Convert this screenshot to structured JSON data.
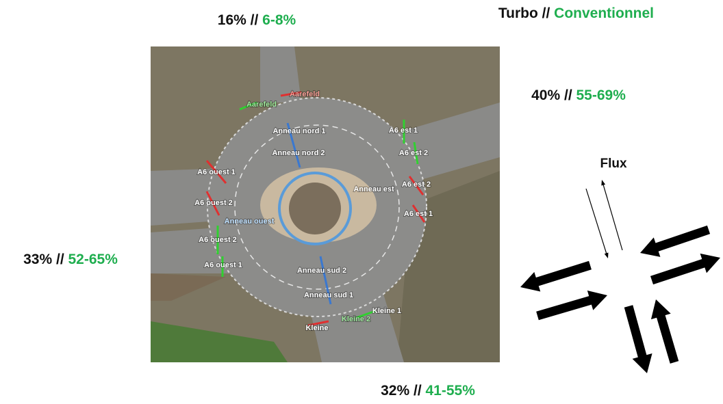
{
  "legend": {
    "turbo": "Turbo",
    "separator": "//",
    "conventionnel": "Conventionnel"
  },
  "approaches": [
    {
      "turbo": "16%",
      "separator": "//",
      "conventionnel": "6-8%"
    },
    {
      "turbo": "40%",
      "separator": "//",
      "conventionnel": "55-69%"
    },
    {
      "turbo": "33%",
      "separator": "//",
      "conventionnel": "52-65%"
    },
    {
      "turbo": "32%",
      "separator": "//",
      "conventionnel": "41-55%"
    }
  ],
  "flux_label": "Flux",
  "photo_labels": [
    {
      "text": "Aarefeld",
      "color": "#f49a93"
    },
    {
      "text": "Aarefeld",
      "color": "#9be89b"
    },
    {
      "text": "Anneau nord 1",
      "color": "#ffffff"
    },
    {
      "text": "Anneau nord 2",
      "color": "#ffffff"
    },
    {
      "text": "A6 est 1",
      "color": "#ffffff"
    },
    {
      "text": "A6 est 2",
      "color": "#ffffff"
    },
    {
      "text": "A6 ouest 1",
      "color": "#ffffff"
    },
    {
      "text": "Anneau est",
      "color": "#ffffff"
    },
    {
      "text": "A6 est 2",
      "color": "#ffffff"
    },
    {
      "text": "A6 ouest 2",
      "color": "#ffffff"
    },
    {
      "text": "A6 est 1",
      "color": "#ffffff"
    },
    {
      "text": "Anneau ouest",
      "color": "#bfe0ff"
    },
    {
      "text": "A6 ouest 2",
      "color": "#ffffff"
    },
    {
      "text": "A6 ouest 1",
      "color": "#ffffff"
    },
    {
      "text": "Anneau sud 2",
      "color": "#ffffff"
    },
    {
      "text": "Anneau sud 1",
      "color": "#ffffff"
    },
    {
      "text": "Kleine 1",
      "color": "#ffffff"
    },
    {
      "text": "Kleine 2",
      "color": "#9be89b"
    },
    {
      "text": "Kleine",
      "color": "#ffffff"
    }
  ]
}
